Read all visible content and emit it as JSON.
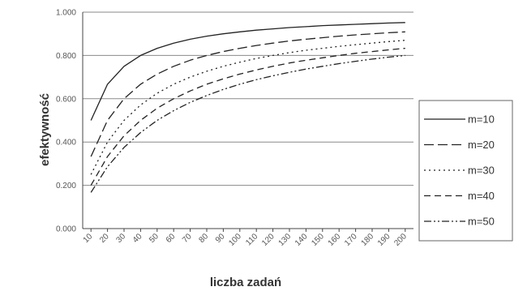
{
  "chart_data": {
    "type": "line",
    "xlabel": "liczba zadań",
    "ylabel": "efektywność",
    "x": [
      10,
      20,
      30,
      40,
      50,
      60,
      70,
      80,
      90,
      100,
      110,
      120,
      130,
      140,
      150,
      160,
      170,
      180,
      190,
      200
    ],
    "ylim": [
      0,
      1
    ],
    "yticks": [
      "0.000",
      "0.200",
      "0.400",
      "0.600",
      "0.800",
      "1.000"
    ],
    "grid": "horizontal",
    "legend_position": "right",
    "series": [
      {
        "name": "m=10",
        "style": "solid",
        "values": [
          0.5,
          0.667,
          0.75,
          0.8,
          0.833,
          0.857,
          0.875,
          0.889,
          0.9,
          0.909,
          0.917,
          0.923,
          0.929,
          0.933,
          0.938,
          0.941,
          0.944,
          0.947,
          0.95,
          0.952
        ]
      },
      {
        "name": "m=20",
        "style": "long-dash",
        "values": [
          0.333,
          0.5,
          0.6,
          0.667,
          0.714,
          0.75,
          0.778,
          0.8,
          0.818,
          0.833,
          0.846,
          0.857,
          0.867,
          0.875,
          0.882,
          0.889,
          0.895,
          0.9,
          0.905,
          0.909
        ]
      },
      {
        "name": "m=30",
        "style": "dotted",
        "values": [
          0.25,
          0.4,
          0.5,
          0.571,
          0.625,
          0.667,
          0.7,
          0.727,
          0.75,
          0.769,
          0.786,
          0.8,
          0.813,
          0.824,
          0.833,
          0.842,
          0.85,
          0.857,
          0.864,
          0.87
        ]
      },
      {
        "name": "m=40",
        "style": "dash",
        "values": [
          0.2,
          0.333,
          0.429,
          0.5,
          0.556,
          0.6,
          0.636,
          0.667,
          0.692,
          0.714,
          0.733,
          0.75,
          0.765,
          0.778,
          0.789,
          0.8,
          0.81,
          0.818,
          0.826,
          0.833
        ]
      },
      {
        "name": "m=50",
        "style": "dash-dot",
        "values": [
          0.167,
          0.286,
          0.375,
          0.444,
          0.5,
          0.545,
          0.583,
          0.615,
          0.643,
          0.667,
          0.688,
          0.706,
          0.722,
          0.737,
          0.75,
          0.762,
          0.773,
          0.783,
          0.792,
          0.8
        ]
      }
    ]
  },
  "colors": {
    "line": "#222222",
    "grid": "#8a8a8a",
    "axis": "#444444",
    "legend_border": "#666666"
  }
}
